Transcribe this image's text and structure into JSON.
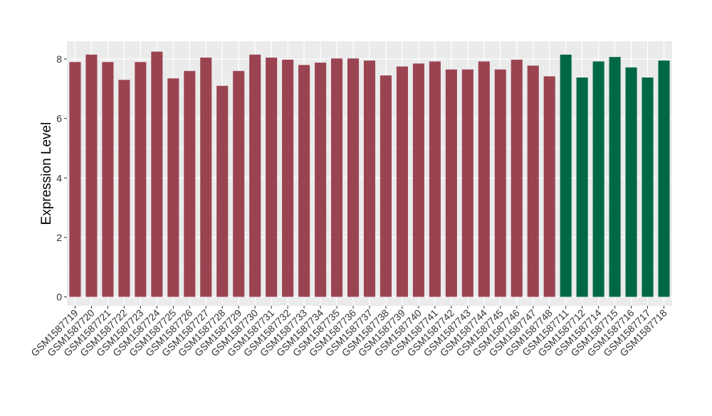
{
  "chart_data": {
    "type": "bar",
    "title": "",
    "xlabel": "",
    "ylabel": "Expression Level",
    "ylim": [
      -0.3,
      8.6
    ],
    "yticks": [
      0,
      2,
      4,
      6,
      8
    ],
    "grid": true,
    "legend": "none",
    "colors": {
      "group_a": "#9B4451",
      "group_b": "#006847",
      "panel": "#EBEBEB",
      "grid": "#FFFFFF",
      "text": "#000000",
      "tick": "#333333"
    },
    "categories": [
      "GSM1587719",
      "GSM1587720",
      "GSM1587721",
      "GSM1587722",
      "GSM1587723",
      "GSM1587724",
      "GSM1587725",
      "GSM1587726",
      "GSM1587727",
      "GSM1587728",
      "GSM1587729",
      "GSM1587730",
      "GSM1587731",
      "GSM1587732",
      "GSM1587733",
      "GSM1587734",
      "GSM1587735",
      "GSM1587736",
      "GSM1587737",
      "GSM1587738",
      "GSM1587739",
      "GSM1587740",
      "GSM1587741",
      "GSM1587742",
      "GSM1587743",
      "GSM1587744",
      "GSM1587745",
      "GSM1587746",
      "GSM1587747",
      "GSM1587748",
      "GSM1587711",
      "GSM1587712",
      "GSM1587714",
      "GSM1587715",
      "GSM1587716",
      "GSM1587717",
      "GSM1587718"
    ],
    "values": [
      7.9,
      8.15,
      7.9,
      7.3,
      7.9,
      8.25,
      7.35,
      7.6,
      8.05,
      7.1,
      7.6,
      8.15,
      8.05,
      7.98,
      7.8,
      7.88,
      8.02,
      8.02,
      7.95,
      7.45,
      7.75,
      7.85,
      7.92,
      7.65,
      7.65,
      7.92,
      7.65,
      7.98,
      7.78,
      7.42,
      8.15,
      7.38,
      7.92,
      8.07,
      7.72,
      7.38,
      7.95
    ],
    "groups": [
      "a",
      "a",
      "a",
      "a",
      "a",
      "a",
      "a",
      "a",
      "a",
      "a",
      "a",
      "a",
      "a",
      "a",
      "a",
      "a",
      "a",
      "a",
      "a",
      "a",
      "a",
      "a",
      "a",
      "a",
      "a",
      "a",
      "a",
      "a",
      "a",
      "a",
      "b",
      "b",
      "b",
      "b",
      "b",
      "b",
      "b"
    ]
  }
}
